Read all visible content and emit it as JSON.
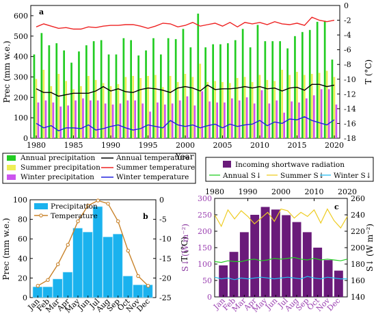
{
  "chart_data": [
    {
      "panel": "a",
      "type": "bar+line",
      "xlabel": "Year",
      "ylabel_left": "Prec (mm w.e.)",
      "ylabel_right": "T (°C)",
      "ylim_left": [
        0,
        650
      ],
      "ylim_right": [
        -18,
        0
      ],
      "x_ticks": [
        1980,
        1985,
        1990,
        1995,
        2000,
        2005,
        2010,
        2015,
        2020
      ],
      "y_ticks_left": [
        0,
        100,
        200,
        300,
        400,
        500,
        600
      ],
      "y_ticks_right": [
        0,
        -2,
        -4,
        -6,
        -8,
        -10,
        -12,
        -14,
        -16,
        -18
      ],
      "years": [
        1980,
        1981,
        1982,
        1983,
        1984,
        1985,
        1986,
        1987,
        1988,
        1989,
        1990,
        1991,
        1992,
        1993,
        1994,
        1995,
        1996,
        1997,
        1998,
        1999,
        2000,
        2001,
        2002,
        2003,
        2004,
        2005,
        2006,
        2007,
        2008,
        2009,
        2010,
        2011,
        2012,
        2013,
        2014,
        2015,
        2016,
        2017,
        2018,
        2019,
        2020
      ],
      "series": [
        {
          "name": "Annual precipitation",
          "kind": "bar",
          "color": "#22cc22",
          "axis": "left",
          "values": [
            410,
            515,
            455,
            465,
            430,
            370,
            425,
            455,
            475,
            480,
            410,
            410,
            490,
            480,
            405,
            430,
            490,
            410,
            490,
            485,
            535,
            445,
            610,
            445,
            460,
            460,
            465,
            480,
            535,
            445,
            555,
            475,
            475,
            475,
            440,
            500,
            520,
            530,
            570,
            575,
            385
          ]
        },
        {
          "name": "Summer precipitation",
          "kind": "bar",
          "color": "#eeee55",
          "axis": "left",
          "values": [
            290,
            335,
            255,
            315,
            280,
            240,
            255,
            305,
            285,
            270,
            255,
            265,
            300,
            305,
            295,
            305,
            310,
            250,
            305,
            275,
            315,
            300,
            365,
            275,
            280,
            275,
            270,
            295,
            300,
            275,
            310,
            285,
            280,
            335,
            310,
            325,
            310,
            315,
            320,
            330,
            300
          ]
        },
        {
          "name": "Winter precipitation",
          "kind": "bar",
          "color": "#cc55ee",
          "axis": "left",
          "values": [
            175,
            185,
            175,
            155,
            160,
            185,
            195,
            185,
            185,
            170,
            165,
            170,
            185,
            185,
            170,
            130,
            175,
            165,
            170,
            185,
            205,
            160,
            230,
            180,
            175,
            175,
            195,
            185,
            200,
            170,
            235,
            170,
            185,
            125,
            180,
            175,
            195,
            210,
            240,
            240,
            165
          ]
        },
        {
          "name": "Annual temperature",
          "kind": "line",
          "color": "#000000",
          "axis": "right",
          "values": [
            -11.3,
            -11.8,
            -11.8,
            -12.3,
            -12.1,
            -11.9,
            -11.9,
            -11.9,
            -11.6,
            -11.0,
            -11.6,
            -11.3,
            -11.7,
            -11.8,
            -11.4,
            -11.2,
            -11.3,
            -11.5,
            -11.8,
            -11.2,
            -11.0,
            -11.2,
            -11.6,
            -10.8,
            -11.4,
            -11.3,
            -11.3,
            -11.2,
            -11.0,
            -11.2,
            -11.0,
            -11.3,
            -11.2,
            -11.6,
            -11.2,
            -11.1,
            -11.5,
            -10.7,
            -10.7,
            -11.0,
            -10.8
          ]
        },
        {
          "name": "Summer temperature",
          "kind": "line",
          "color": "#ee2222",
          "axis": "right",
          "values": [
            -2.9,
            -2.5,
            -2.8,
            -3.1,
            -3.0,
            -3.2,
            -3.2,
            -2.9,
            -3.0,
            -2.8,
            -2.7,
            -2.7,
            -2.6,
            -2.6,
            -2.8,
            -3.1,
            -2.8,
            -2.4,
            -2.5,
            -2.9,
            -2.7,
            -2.3,
            -2.8,
            -2.6,
            -2.4,
            -2.8,
            -2.3,
            -2.9,
            -2.3,
            -2.5,
            -2.3,
            -2.6,
            -2.2,
            -2.5,
            -2.6,
            -2.4,
            -2.7,
            -1.6,
            -2.0,
            -2.2,
            -2.0
          ]
        },
        {
          "name": "Winter temperature",
          "kind": "line",
          "color": "#2222dd",
          "axis": "right",
          "values": [
            -16.0,
            -16.6,
            -16.3,
            -17.0,
            -16.6,
            -16.6,
            -16.7,
            -16.2,
            -16.9,
            -16.7,
            -16.4,
            -16.2,
            -16.6,
            -16.9,
            -16.7,
            -16.2,
            -16.4,
            -16.6,
            -15.6,
            -16.2,
            -16.4,
            -16.2,
            -16.6,
            -16.3,
            -16.1,
            -16.6,
            -16.1,
            -16.4,
            -16.2,
            -16.1,
            -15.6,
            -16.3,
            -15.8,
            -16.0,
            -15.4,
            -15.5,
            -15.1,
            -15.6,
            -15.9,
            -16.2,
            -15.5
          ]
        }
      ],
      "legend_position": "below"
    },
    {
      "panel": "b",
      "type": "bar+line",
      "ylabel_left": "Prec (mm w.e.)",
      "ylabel_right": "T (°C)",
      "ylim_left": [
        0,
        100
      ],
      "ylim_right": [
        -25,
        0
      ],
      "y_ticks_left": [
        0,
        20,
        40,
        60,
        80,
        100
      ],
      "y_ticks_right": [
        0,
        -5,
        -10,
        -15,
        -20,
        -25
      ],
      "categories": [
        "Jan",
        "Feb",
        "Mar",
        "Apr",
        "May",
        "Jun",
        "Jul",
        "Aug",
        "Sep",
        "Oct",
        "Nov",
        "Dec"
      ],
      "series": [
        {
          "name": "Precipitation",
          "kind": "bar",
          "color": "#1ab2ee",
          "axis": "left",
          "values": [
            11,
            11,
            19,
            26,
            71,
            67,
            93,
            62,
            65,
            22,
            13,
            13
          ]
        },
        {
          "name": "Temperature",
          "kind": "line",
          "color": "#c8822a",
          "axis": "right",
          "values": [
            -22.0,
            -20.5,
            -16.5,
            -11.5,
            -5.5,
            -1.5,
            -0.2,
            -1.0,
            -5.5,
            -13.0,
            -19.5,
            -22.0
          ]
        }
      ],
      "legend_position": "top-left"
    },
    {
      "panel": "c",
      "type": "bar+line",
      "ylabel_left": "S↓ (W m⁻²)",
      "ylabel_right": "S↓ (W m⁻²)",
      "ylim_left": [
        0,
        300
      ],
      "ylim_right": [
        140,
        260
      ],
      "y_ticks_left": [
        0,
        50,
        100,
        150,
        200,
        250,
        300
      ],
      "y_ticks_right": [
        140,
        160,
        180,
        200,
        220,
        240,
        260
      ],
      "top_axis_ticks": [
        1980,
        1990,
        2000,
        2010,
        2020
      ],
      "top_axis_range": [
        1980,
        2020
      ],
      "categories": [
        "Jan",
        "Feb",
        "Mar",
        "Apr",
        "May",
        "Jun",
        "Jul",
        "Aug",
        "Sep",
        "Oct",
        "Nov",
        "Dec"
      ],
      "bars": {
        "name": "Incoming shortwave radiation",
        "color": "#6a1b7a",
        "axis": "left",
        "values": [
          96,
          137,
          197,
          250,
          274,
          266,
          249,
          228,
          197,
          150,
          112,
          80
        ]
      },
      "lines": [
        {
          "name": "Annual S↓",
          "color": "#22cc22",
          "axis": "right",
          "x": [
            1980,
            1982,
            1984,
            1986,
            1988,
            1990,
            1992,
            1994,
            1996,
            1998,
            2000,
            2002,
            2004,
            2006,
            2008,
            2010,
            2012,
            2014,
            2016,
            2018,
            2020
          ],
          "values": [
            183,
            182,
            184,
            183,
            183,
            185,
            186,
            184,
            185,
            187,
            186,
            187,
            188,
            186,
            185,
            187,
            185,
            186,
            185,
            184,
            186
          ]
        },
        {
          "name": "Summer S↓",
          "color": "#eecc22",
          "axis": "right",
          "x": [
            1980,
            1982,
            1984,
            1986,
            1988,
            1990,
            1992,
            1994,
            1996,
            1998,
            2000,
            2002,
            2004,
            2006,
            2008,
            2010,
            2012,
            2014,
            2016,
            2018,
            2020
          ],
          "values": [
            240,
            226,
            246,
            235,
            245,
            238,
            229,
            236,
            243,
            232,
            247,
            245,
            236,
            243,
            238,
            246,
            230,
            247,
            233,
            224,
            238
          ]
        },
        {
          "name": "Winter S↓",
          "color": "#22bbee",
          "axis": "right",
          "x": [
            1980,
            1982,
            1984,
            1986,
            1988,
            1990,
            1992,
            1994,
            1996,
            1998,
            2000,
            2002,
            2004,
            2006,
            2008,
            2010,
            2012,
            2014,
            2016,
            2018,
            2020
          ],
          "values": [
            164,
            162,
            163,
            161,
            163,
            162,
            163,
            164,
            163,
            162,
            163,
            164,
            163,
            162,
            165,
            163,
            162,
            164,
            163,
            162,
            162
          ]
        }
      ],
      "legend_position": "top"
    }
  ]
}
